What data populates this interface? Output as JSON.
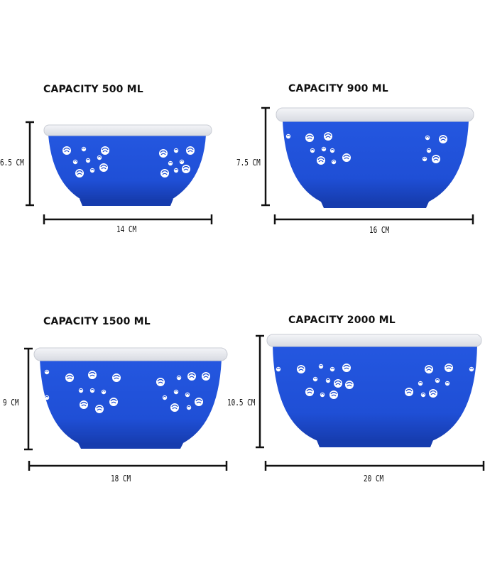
{
  "products": [
    {
      "capacity": "CAPACITY 500 ML",
      "height": "6.5 CM",
      "width": "14 CM"
    },
    {
      "capacity": "CAPACITY 900 ML",
      "height": "7.5 CM",
      "width": "16 CM"
    },
    {
      "capacity": "CAPACITY 1500 ML",
      "height": "9 CM",
      "width": "18 CM"
    },
    {
      "capacity": "CAPACITY 2000 ML",
      "height": "10.5 CM",
      "width": "20 CM"
    }
  ],
  "colors": {
    "bowl": "#1f4fd6",
    "bowl_dark": "#163cae",
    "lid": "#eceef3",
    "lid_edge": "#c9ccd4",
    "pattern": "#ffffff",
    "ink": "#111111"
  }
}
